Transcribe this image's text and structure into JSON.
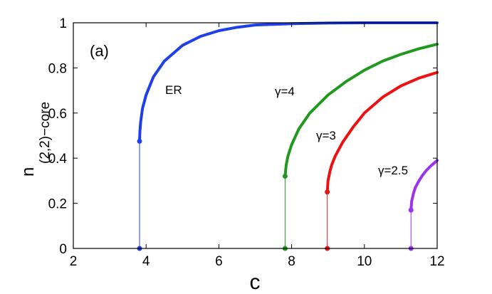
{
  "chart_data": {
    "type": "line",
    "title": "",
    "panel_label": "(a)",
    "xlabel": "c",
    "ylabel_main": "n",
    "ylabel_sub": "(2,2)−core",
    "xlim": [
      2,
      12
    ],
    "ylim": [
      0,
      1
    ],
    "xticks": [
      "2",
      "4",
      "6",
      "8",
      "10",
      "12"
    ],
    "yticks": [
      "0",
      "0.2",
      "0.4",
      "0.6",
      "0.8",
      "1"
    ],
    "grid": false,
    "legend": "none",
    "series": [
      {
        "name": "ER",
        "color": "#1f3fe8",
        "c_start": 3.82,
        "n_start": 0.475,
        "x": [
          3.82,
          3.83,
          3.85,
          3.9,
          4.0,
          4.2,
          4.5,
          5.0,
          5.5,
          6.0,
          6.5,
          7.0,
          8.0,
          9.0,
          10.0,
          12.0
        ],
        "y": [
          0.475,
          0.52,
          0.56,
          0.62,
          0.68,
          0.76,
          0.83,
          0.9,
          0.94,
          0.965,
          0.98,
          0.99,
          0.996,
          0.999,
          1.0,
          1.0
        ]
      },
      {
        "name": "γ=4",
        "color": "#1f9a1f",
        "c_start": 7.82,
        "n_start": 0.32,
        "x": [
          7.82,
          7.85,
          7.9,
          8.0,
          8.2,
          8.5,
          9.0,
          9.5,
          10.0,
          10.5,
          11.0,
          11.5,
          12.0
        ],
        "y": [
          0.32,
          0.37,
          0.41,
          0.46,
          0.53,
          0.6,
          0.68,
          0.74,
          0.79,
          0.83,
          0.86,
          0.885,
          0.905
        ]
      },
      {
        "name": "γ=3",
        "color": "#ee1111",
        "c_start": 8.98,
        "n_start": 0.25,
        "x": [
          8.98,
          9.0,
          9.05,
          9.1,
          9.2,
          9.4,
          9.7,
          10.0,
          10.5,
          11.0,
          11.5,
          12.0
        ],
        "y": [
          0.25,
          0.3,
          0.34,
          0.37,
          0.41,
          0.47,
          0.54,
          0.6,
          0.67,
          0.72,
          0.755,
          0.78
        ]
      },
      {
        "name": "γ=2.5",
        "color": "#9933ee",
        "c_start": 11.28,
        "n_start": 0.17,
        "x": [
          11.28,
          11.3,
          11.35,
          11.4,
          11.5,
          11.6,
          11.7,
          11.8,
          11.9,
          12.0
        ],
        "y": [
          0.17,
          0.21,
          0.245,
          0.27,
          0.3,
          0.325,
          0.345,
          0.362,
          0.376,
          0.39
        ]
      }
    ]
  }
}
